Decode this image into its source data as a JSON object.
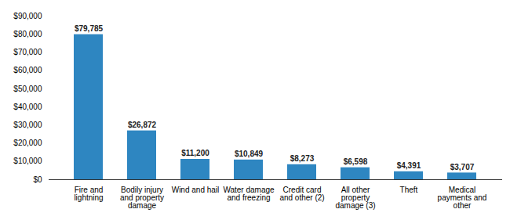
{
  "chart_data": {
    "type": "bar",
    "categories": [
      "Fire and\nlightning",
      "Bodily injury\nand property\ndamage",
      "Wind and hail",
      "Water damage\nand freezing",
      "Credit card\nand other (2)",
      "All other\nproperty\ndamage (3)",
      "Theft",
      "Medical\npayments and\nother"
    ],
    "values": [
      79785,
      26872,
      11200,
      10849,
      8273,
      6598,
      4391,
      3707
    ],
    "value_labels": [
      "$79,785",
      "$26,872",
      "$11,200",
      "$10,849",
      "$8,273",
      "$6,598",
      "$4,391",
      "$3,707"
    ],
    "data_labels": true,
    "color": "#2E86C1",
    "ylim": [
      0,
      90000
    ],
    "yticks": [
      {
        "value": 0,
        "label": "$0"
      },
      {
        "value": 10000,
        "label": "$10,000"
      },
      {
        "value": 20000,
        "label": "$20,000"
      },
      {
        "value": 30000,
        "label": "$30,000"
      },
      {
        "value": 40000,
        "label": "$40,000"
      },
      {
        "value": 50000,
        "label": "$50,000"
      },
      {
        "value": 60000,
        "label": "$60,000"
      },
      {
        "value": 70000,
        "label": "$70,000"
      },
      {
        "value": 80000,
        "label": "$80,000"
      },
      {
        "value": 90000,
        "label": "$90,000"
      }
    ],
    "grid": false
  }
}
